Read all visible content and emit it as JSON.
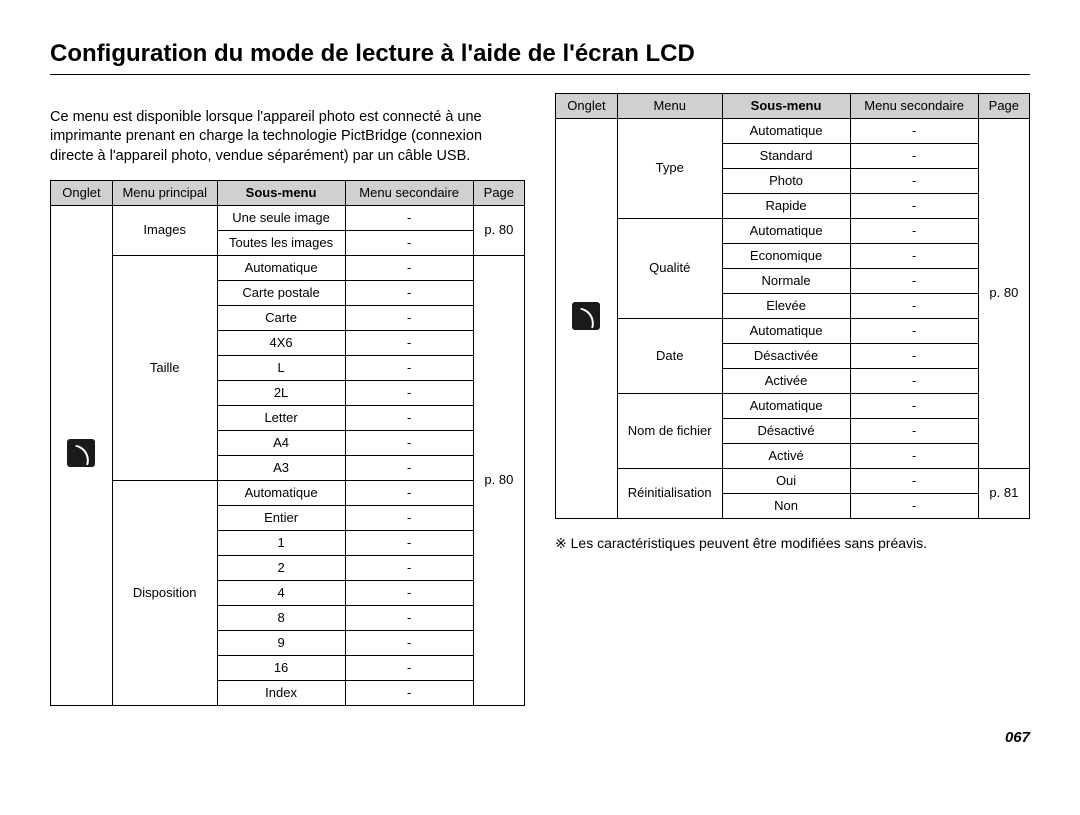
{
  "title": "Configuration du mode de lecture à l'aide de l'écran LCD",
  "intro": "Ce menu est disponible lorsque l'appareil photo est connecté à une imprimante prenant en charge la technologie PictBridge (connexion directe à l'appareil photo, vendue séparément) par un câble USB.",
  "footnote": "※  Les caractéristiques peuvent être modifiées sans préavis.",
  "page_number": "067",
  "headers_left": {
    "onglet": "Onglet",
    "menu": "Menu principal",
    "sous": "Sous-menu",
    "secondaire": "Menu secondaire",
    "page": "Page"
  },
  "headers_right": {
    "onglet": "Onglet",
    "menu": "Menu",
    "sous": "Sous-menu",
    "secondaire": "Menu secondaire",
    "page": "Page"
  },
  "left": {
    "groups": [
      {
        "menu": "Images",
        "page": "p. 80",
        "subs": [
          "Une seule image",
          "Toutes les images"
        ]
      },
      {
        "menu": "Taille",
        "subs": [
          "Automatique",
          "Carte postale",
          "Carte",
          "4X6",
          "L",
          "2L",
          "Letter",
          "A4",
          "A3"
        ]
      },
      {
        "menu": "Disposition",
        "subs": [
          "Automatique",
          "Entier",
          "1",
          "2",
          "4",
          "8",
          "9",
          "16",
          "Index"
        ]
      }
    ],
    "big_page": "p. 80"
  },
  "right": {
    "groups": [
      {
        "menu": "Type",
        "subs": [
          "Automatique",
          "Standard",
          "Photo",
          "Rapide"
        ]
      },
      {
        "menu": "Qualité",
        "subs": [
          "Automatique",
          "Economique",
          "Normale",
          "Elevée"
        ]
      },
      {
        "menu": "Date",
        "subs": [
          "Automatique",
          "Désactivée",
          "Activée"
        ]
      },
      {
        "menu": "Nom de fichier",
        "subs": [
          "Automatique",
          "Désactivé",
          "Activé"
        ]
      },
      {
        "menu": "Réinitialisation",
        "page": "p. 81",
        "subs": [
          "Oui",
          "Non"
        ]
      }
    ],
    "big_page": "p. 80"
  },
  "dash": "-"
}
